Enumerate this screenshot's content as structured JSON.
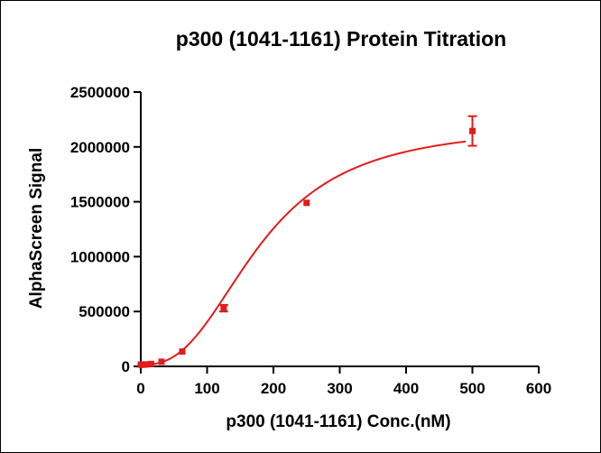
{
  "chart_data": {
    "type": "scatter",
    "title": "p300 (1041-1161) Protein Titration",
    "xlabel": "p300 (1041-1161) Conc.(nM)",
    "ylabel": "AlphaScreen Signal",
    "xlim": [
      0,
      600
    ],
    "ylim": [
      0,
      2500000
    ],
    "x_ticks": [
      0,
      100,
      200,
      300,
      400,
      500,
      600
    ],
    "y_ticks": [
      0,
      500000,
      1000000,
      1500000,
      2000000,
      2500000
    ],
    "x_tick_labels": [
      "0",
      "100",
      "200",
      "300",
      "400",
      "500",
      "600"
    ],
    "y_tick_labels": [
      "0",
      "500000",
      "1000000",
      "1500000",
      "2000000",
      "2500000"
    ],
    "grid": false,
    "series": [
      {
        "name": "p300 (1041-1161)",
        "color": "#e41b1b",
        "x": [
          0,
          1.95,
          3.9,
          7.8,
          15.6,
          31.25,
          62.5,
          125,
          250,
          500
        ],
        "y": [
          15000,
          15000,
          16000,
          18000,
          22000,
          42000,
          135000,
          530000,
          1490000,
          2145000
        ],
        "error": [
          0,
          0,
          0,
          0,
          0,
          0,
          0,
          30000,
          0,
          135000
        ],
        "fit": {
          "model": "sigmoidal dose-response",
          "bottom": 15000,
          "top": 2200000,
          "ec50": 180,
          "hill": 2.6,
          "x_range": [
            0,
            490
          ]
        }
      }
    ]
  }
}
